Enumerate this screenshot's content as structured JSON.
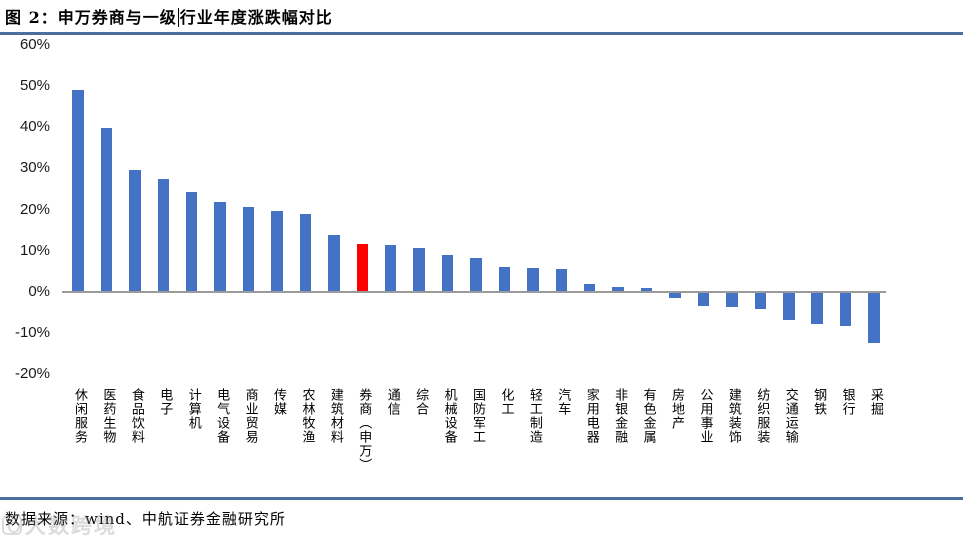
{
  "header": {
    "title_part1": "图 2：申万券商与一级",
    "title_part2": "行业年度涨跌幅对比"
  },
  "footer": {
    "source": "数据来源：wind、中航证券金融研究所"
  },
  "watermark": {
    "text": "大数跨境"
  },
  "colors": {
    "bar_blue": "#4472c4",
    "bar_red": "#ff0000",
    "divider_blue": "#4a6f9f",
    "axis_gray": "#9b9b9b"
  },
  "chart_data": {
    "type": "bar",
    "title": "申万券商与一级行业年度涨跌幅对比",
    "xlabel": "",
    "ylabel": "",
    "categories": [
      "休闲服务",
      "医药生物",
      "食品饮料",
      "电子",
      "计算机",
      "电气设备",
      "商业贸易",
      "传媒",
      "农林牧渔",
      "建筑材料",
      "券商（申万）",
      "通信",
      "综合",
      "机械设备",
      "国防军工",
      "化工",
      "轻工制造",
      "汽车",
      "家用电器",
      "非银金融",
      "有色金属",
      "房地产",
      "公用事业",
      "建筑装饰",
      "纺织服装",
      "交通运输",
      "钢铁",
      "银行",
      "采掘"
    ],
    "values": [
      48.8,
      39.6,
      29.5,
      27.3,
      24.0,
      21.6,
      20.5,
      19.5,
      18.8,
      13.7,
      11.5,
      11.1,
      10.5,
      8.8,
      8.1,
      5.9,
      5.6,
      5.4,
      1.6,
      1.0,
      0.7,
      -1.1,
      -3.2,
      -3.3,
      -4.0,
      -6.5,
      -7.5,
      -8.1,
      -12.2
    ],
    "unit": "%",
    "bar_color": "#4472c4",
    "highlight": {
      "index": 10,
      "category": "券商（申万）",
      "color": "#ff0000"
    },
    "ylim": [
      -20,
      60
    ],
    "yticks": [
      60,
      50,
      40,
      30,
      20,
      10,
      0,
      -10,
      -20
    ],
    "ytick_format": "percent",
    "grid": false,
    "legend": null
  }
}
